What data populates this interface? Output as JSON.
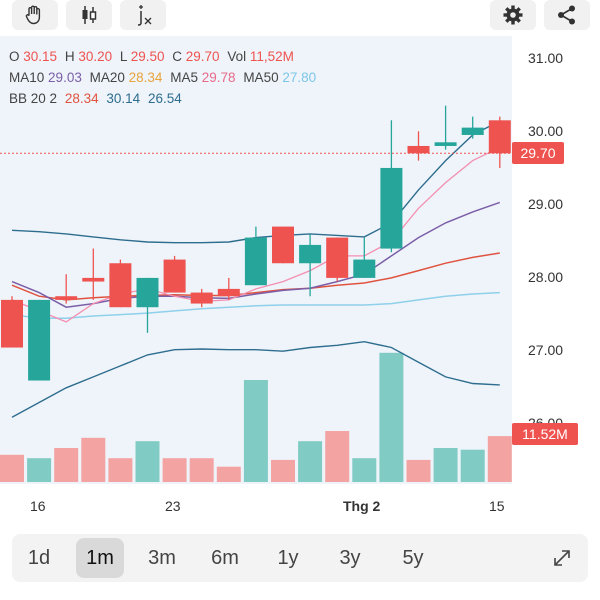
{
  "toolbar": {
    "buttons": [
      "hand-icon",
      "candles-icon",
      "indicator-fx-icon",
      "settings-icon",
      "share-icon"
    ]
  },
  "legend": {
    "row1": [
      {
        "label": "O",
        "value": "30.15"
      },
      {
        "label": "H",
        "value": "30.20"
      },
      {
        "label": "L",
        "value": "29.50"
      },
      {
        "label": "C",
        "value": "29.70"
      },
      {
        "label": "Vol",
        "value": "11,52M"
      }
    ],
    "row2": [
      {
        "label": "MA10",
        "value": "29.03"
      },
      {
        "label": "MA20",
        "value": "28.34"
      },
      {
        "label": "MA5",
        "value": "29.78"
      },
      {
        "label": "MA50",
        "value": "27.80"
      }
    ],
    "row3": {
      "label": "BB 20 2",
      "values": [
        "28.34",
        "30.14",
        "26.54"
      ]
    }
  },
  "colors": {
    "up": "#26a69a",
    "down": "#ef5350",
    "ma10": "#7b5ea7",
    "ma20": "#e0533f",
    "ma5": "#f48fb1",
    "ma50": "#8fd0ea",
    "bb": "#2e6d8e",
    "bb_mid": "#e57373"
  },
  "y_axis": {
    "labels": [
      "31.00",
      "30.00",
      "29.00",
      "28.00",
      "27.00",
      "26.00"
    ]
  },
  "price_tag": "29.70",
  "volume_tag": "11.52M",
  "x_axis": {
    "labels": [
      "16",
      "23",
      "Thg 2",
      "15"
    ]
  },
  "timeframes": [
    "1d",
    "1m",
    "3m",
    "6m",
    "1y",
    "3y",
    "5y"
  ],
  "active_timeframe": "1m",
  "chart_data": {
    "type": "candlestick",
    "candles": [
      {
        "o": 27.7,
        "h": 27.75,
        "l": 27.05,
        "c": 27.05
      },
      {
        "o": 26.6,
        "h": 27.7,
        "l": 26.6,
        "c": 27.7
      },
      {
        "o": 27.75,
        "h": 28.05,
        "l": 27.65,
        "c": 27.7
      },
      {
        "o": 28.0,
        "h": 28.4,
        "l": 27.7,
        "c": 27.95
      },
      {
        "o": 28.2,
        "h": 28.25,
        "l": 27.6,
        "c": 27.6
      },
      {
        "o": 27.6,
        "h": 28.0,
        "l": 27.25,
        "c": 28.0
      },
      {
        "o": 28.25,
        "h": 28.3,
        "l": 27.8,
        "c": 27.8
      },
      {
        "o": 27.8,
        "h": 27.85,
        "l": 27.6,
        "c": 27.65
      },
      {
        "o": 27.85,
        "h": 28.0,
        "l": 27.7,
        "c": 27.75
      },
      {
        "o": 27.9,
        "h": 28.7,
        "l": 27.9,
        "c": 28.55
      },
      {
        "o": 28.7,
        "h": 28.7,
        "l": 28.2,
        "c": 28.2
      },
      {
        "o": 28.2,
        "h": 28.6,
        "l": 27.75,
        "c": 28.45
      },
      {
        "o": 28.55,
        "h": 28.55,
        "l": 27.95,
        "c": 28.0
      },
      {
        "o": 28.0,
        "h": 28.55,
        "l": 28.0,
        "c": 28.25
      },
      {
        "o": 28.4,
        "h": 30.15,
        "l": 28.35,
        "c": 29.5
      },
      {
        "o": 29.8,
        "h": 30.0,
        "l": 29.6,
        "c": 29.7
      },
      {
        "o": 29.8,
        "h": 30.35,
        "l": 29.75,
        "c": 29.85
      },
      {
        "o": 29.95,
        "h": 30.2,
        "l": 29.9,
        "c": 30.05
      },
      {
        "o": 30.15,
        "h": 30.2,
        "l": 29.5,
        "c": 29.7
      }
    ],
    "volumes": [
      8,
      7,
      10,
      13,
      7,
      12,
      7,
      7,
      4.5,
      30,
      6.5,
      12,
      15,
      7,
      38,
      6.5,
      10,
      9.5,
      13.5
    ],
    "ma50": [
      27.5,
      27.45,
      27.45,
      27.48,
      27.5,
      27.52,
      27.55,
      27.58,
      27.6,
      27.62,
      27.63,
      27.63,
      27.63,
      27.63,
      27.65,
      27.7,
      27.75,
      27.78,
      27.8
    ],
    "ma20": [
      27.9,
      27.75,
      27.7,
      27.73,
      27.75,
      27.76,
      27.77,
      27.76,
      27.76,
      27.8,
      27.84,
      27.86,
      27.9,
      27.93,
      28.0,
      28.1,
      28.2,
      28.28,
      28.34
    ],
    "ma10": [
      27.95,
      27.8,
      27.6,
      27.65,
      27.72,
      27.75,
      27.75,
      27.73,
      27.72,
      27.78,
      27.83,
      27.86,
      27.95,
      28.05,
      28.3,
      28.55,
      28.75,
      28.9,
      29.03
    ],
    "ma5": [
      27.7,
      27.55,
      27.4,
      27.65,
      27.78,
      27.85,
      27.75,
      27.68,
      27.7,
      27.85,
      27.95,
      28.1,
      28.3,
      28.3,
      28.5,
      28.95,
      29.3,
      29.6,
      29.78
    ],
    "bb_upper": [
      28.65,
      28.63,
      28.6,
      28.56,
      28.52,
      28.49,
      28.48,
      28.48,
      28.49,
      28.55,
      28.58,
      28.6,
      28.58,
      28.56,
      28.75,
      29.2,
      29.6,
      29.95,
      30.14
    ],
    "bb_lower": [
      26.1,
      26.3,
      26.5,
      26.65,
      26.8,
      26.95,
      27.02,
      27.03,
      27.02,
      27.02,
      27.0,
      27.05,
      27.08,
      27.13,
      27.05,
      26.85,
      26.65,
      26.56,
      26.54
    ],
    "current_price": 29.7,
    "y_range": [
      26.0,
      31.0
    ],
    "x_labels": [
      "16",
      "23",
      "Thg 2",
      "15"
    ]
  }
}
